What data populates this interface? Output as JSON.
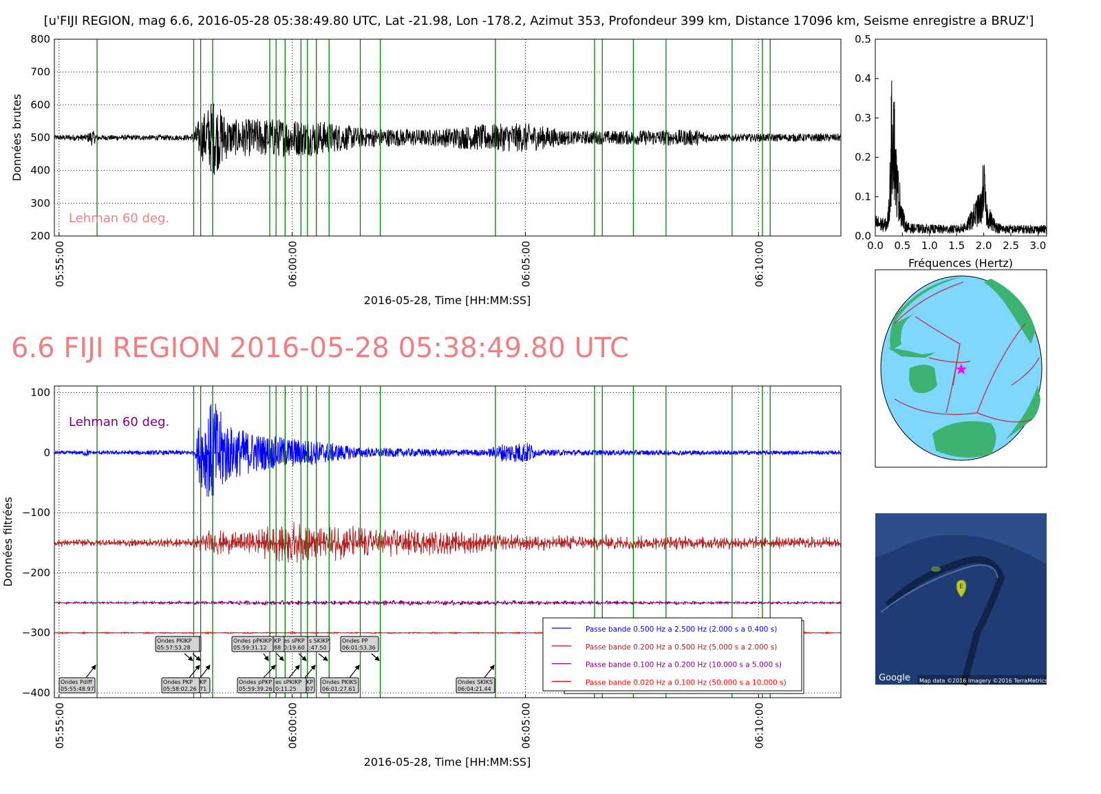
{
  "figure_title": "[u'FIJI REGION, mag 6.6, 2016-05-28 05:38:49.80 UTC, Lat -21.98, Lon -178.2, Azimut 353, Profondeur 399 km, Distance 17096 km, Seisme enregistre a BRUZ']",
  "event_title": "6.6 FIJI REGION 2016-05-28 05:38:49.80 UTC",
  "colors": {
    "event_title": "#f08080",
    "phase_lines": "#008000",
    "ocean": "#7fd6ff",
    "land": "#3cb371",
    "plates": "#c0303a"
  },
  "chart_data": [
    {
      "type": "line",
      "name_key": "raw",
      "ylabel": "Données brutes",
      "xlabel": "2016-05-28, Time [HH:MM:SS]",
      "xlim": [
        "05:54:54",
        "06:11:46"
      ],
      "ylim": [
        200,
        800
      ],
      "yticks": [
        200,
        300,
        400,
        500,
        600,
        700,
        800
      ],
      "xticks": [
        "05:55:00",
        "06:00:00",
        "06:05:00",
        "06:10:00"
      ],
      "grid": true,
      "annotation": "Lehman 60 deg.",
      "annotation_color": "#f08080",
      "series": [
        {
          "color": "#000000",
          "baseline": 500,
          "envelope": [
            [
              "05:54:54",
              8
            ],
            [
              "05:55:35",
              10
            ],
            [
              "05:55:42",
              25
            ],
            [
              "05:55:52",
              8
            ],
            [
              "05:57:50",
              8
            ],
            [
              "05:58:00",
              55
            ],
            [
              "05:58:18",
              120
            ],
            [
              "05:58:40",
              55
            ],
            [
              "05:59:30",
              60
            ],
            [
              "06:00:30",
              55
            ],
            [
              "06:01:30",
              30
            ],
            [
              "06:03:00",
              25
            ],
            [
              "06:04:00",
              40
            ],
            [
              "06:05:00",
              45
            ],
            [
              "06:06:00",
              20
            ],
            [
              "06:08:40",
              25
            ],
            [
              "06:09:00",
              12
            ],
            [
              "06:11:46",
              12
            ]
          ]
        }
      ]
    },
    {
      "type": "line",
      "name_key": "spectrum",
      "xlabel": "Fréquences (Hertz)",
      "xlim": [
        0,
        3.16
      ],
      "ylim": [
        0,
        0.5
      ],
      "xticks": [
        0.0,
        0.5,
        1.0,
        1.5,
        2.0,
        2.5,
        3.0
      ],
      "yticks": [
        0.0,
        0.1,
        0.2,
        0.3,
        0.4,
        0.5
      ],
      "peaks": [
        {
          "freq": 0.32,
          "amplitude": 0.29
        },
        {
          "freq": 2.0,
          "amplitude": 0.14
        }
      ],
      "series": [
        {
          "color": "#000000"
        }
      ]
    },
    {
      "type": "line",
      "name_key": "filtered",
      "ylabel": "Données filtrées",
      "xlabel": "2016-05-28, Time [HH:MM:SS]",
      "xlim": [
        "05:54:54",
        "06:11:46"
      ],
      "ylim": [
        -408,
        111
      ],
      "yticks": [
        100,
        0,
        -100,
        -200,
        -300,
        -400
      ],
      "xticks": [
        "05:55:00",
        "06:00:00",
        "06:05:00",
        "06:10:00"
      ],
      "grid": true,
      "annotation": "Lehman 60 deg.",
      "annotation_color": "#800080",
      "series": [
        {
          "name": "Passe bande 0.500 Hz a 2.500 Hz (2.000 s a 0.400 s)",
          "color": "#0000ff",
          "baseline": 0,
          "envelope": [
            [
              "05:54:54",
              3
            ],
            [
              "05:55:30",
              3
            ],
            [
              "05:55:35",
              8
            ],
            [
              "05:55:40",
              3
            ],
            [
              "05:57:55",
              4
            ],
            [
              "05:58:00",
              50
            ],
            [
              "05:58:18",
              90
            ],
            [
              "05:58:40",
              45
            ],
            [
              "05:59:20",
              30
            ],
            [
              "06:00:30",
              20
            ],
            [
              "06:01:30",
              8
            ],
            [
              "06:04:10",
              5
            ],
            [
              "06:04:30",
              15
            ],
            [
              "06:05:05",
              18
            ],
            [
              "06:05:15",
              5
            ],
            [
              "06:11:46",
              3
            ]
          ]
        },
        {
          "name": "Passe bande 0.200 Hz a 0.500 Hz (5.000 s a 2.000 s)",
          "color": "#b22222",
          "baseline": -150,
          "envelope": [
            [
              "05:54:54",
              6
            ],
            [
              "05:57:50",
              8
            ],
            [
              "05:58:10",
              22
            ],
            [
              "05:59:00",
              20
            ],
            [
              "06:00:00",
              38
            ],
            [
              "06:01:30",
              28
            ],
            [
              "06:03:00",
              22
            ],
            [
              "06:05:00",
              14
            ],
            [
              "06:11:46",
              10
            ]
          ]
        },
        {
          "name": "Passe bande 0.100 Hz a 0.200 Hz (10.000 s a 5.000 s)",
          "color": "#800080",
          "baseline": -250,
          "envelope": [
            [
              "05:54:54",
              1.5
            ],
            [
              "05:58:00",
              3
            ],
            [
              "06:00:00",
              4
            ],
            [
              "06:03:00",
              4
            ],
            [
              "06:11:46",
              2
            ]
          ]
        },
        {
          "name": "Passe bande 0.020 Hz a 0.100 Hz (50.000 s a 10.000 s)",
          "color": "#ff0000",
          "baseline": -300,
          "envelope": [
            [
              "05:54:54",
              1
            ],
            [
              "06:11:46",
              1
            ]
          ]
        }
      ]
    }
  ],
  "phase_times": [
    "05:55:48.97",
    "05:57:53.28",
    "05:58:02.26",
    "05:58:17.71",
    "05:59:31.12",
    "05:59:39.26",
    "05:59:50.88",
    "06:00:11.25",
    "06:00:19.60",
    "06:00:31.07",
    "06:00:47.50",
    "06:01:27.61",
    "06:01:53.36",
    "06:04:21.44",
    "06:06:29",
    "06:06:39",
    "06:07:19",
    "06:08:01",
    "06:09:26",
    "06:10:05",
    "06:10:15"
  ],
  "phase_labels": [
    {
      "l1": "P",
      "l2": "1"
    },
    {
      "l1": "Ondes PKIKP",
      "l2": "05:57:53.28"
    },
    {
      "l1": "s SKIKP",
      "l2": ":47.50"
    },
    {
      "l1": "es sPKP",
      "l2": "0:19.60"
    },
    {
      "l1": "KP",
      "l2": "88"
    },
    {
      "l1": "Ondes pPKIKP",
      "l2": "05:59:31.12"
    },
    {
      "l1": "Ondes PP",
      "l2": "06:01:53.36"
    },
    {
      "l1": "Ondes Pdiff",
      "l2": "05:55:48.97"
    },
    {
      "l1": "KP",
      "l2": "71"
    },
    {
      "l1": "Ondes PKP",
      "l2": "05:58:02.26"
    },
    {
      "l1": "KP",
      "l2": "07"
    },
    {
      "l1": "es sPKIKP",
      "l2": "0:11.25"
    },
    {
      "l1": "Ondes pPKP",
      "l2": "05:59:39.26"
    },
    {
      "l1": "Ondes PKIKS",
      "l2": "06:01:27.61"
    },
    {
      "l1": "Ondes SKIKS",
      "l2": "06:04:21.44"
    }
  ],
  "map": {
    "logo": "Google",
    "attribution": "Map data ©2016  Imagery ©2016 TerraMetrics",
    "marker_label": "E"
  }
}
